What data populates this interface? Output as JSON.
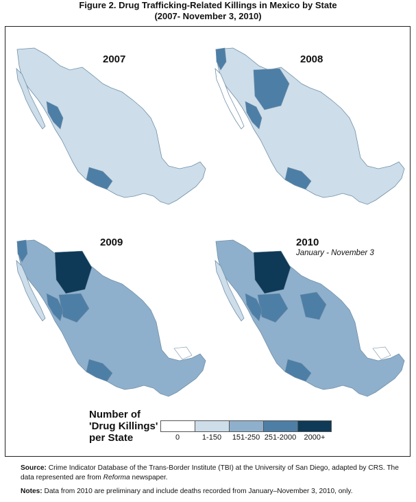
{
  "figure": {
    "title_line1": "Figure 2. Drug Trafficking-Related Killings in Mexico by State",
    "title_line2": "(2007- November 3, 2010)"
  },
  "maps": [
    {
      "year": "2007",
      "subtitle": ""
    },
    {
      "year": "2008",
      "subtitle": ""
    },
    {
      "year": "2009",
      "subtitle": ""
    },
    {
      "year": "2010",
      "subtitle": "January - November 3"
    }
  ],
  "legend": {
    "title_line1": "Number of",
    "title_line2": "'Drug Killings'",
    "title_line3": "per State",
    "bins": [
      {
        "label": "0",
        "color": "#ffffff"
      },
      {
        "label": "1-150",
        "color": "#cddde9"
      },
      {
        "label": "151-250",
        "color": "#8fb0cc"
      },
      {
        "label": "251-2000",
        "color": "#4d7ea6"
      },
      {
        "label": "2000+",
        "color": "#0e3a57"
      }
    ]
  },
  "notes": {
    "source_label": "Source:",
    "source_text": " Crime Indicator Database of the Trans-Border Institute (TBI) at the University of San Diego, adapted by CRS. The data represented are from ",
    "source_italic": "Reforma",
    "source_end": " newspaper.",
    "notes_label": "Notes:",
    "notes_text": " Data from 2010 are preliminary and include deaths recorded from January–November 3, 2010, only."
  }
}
